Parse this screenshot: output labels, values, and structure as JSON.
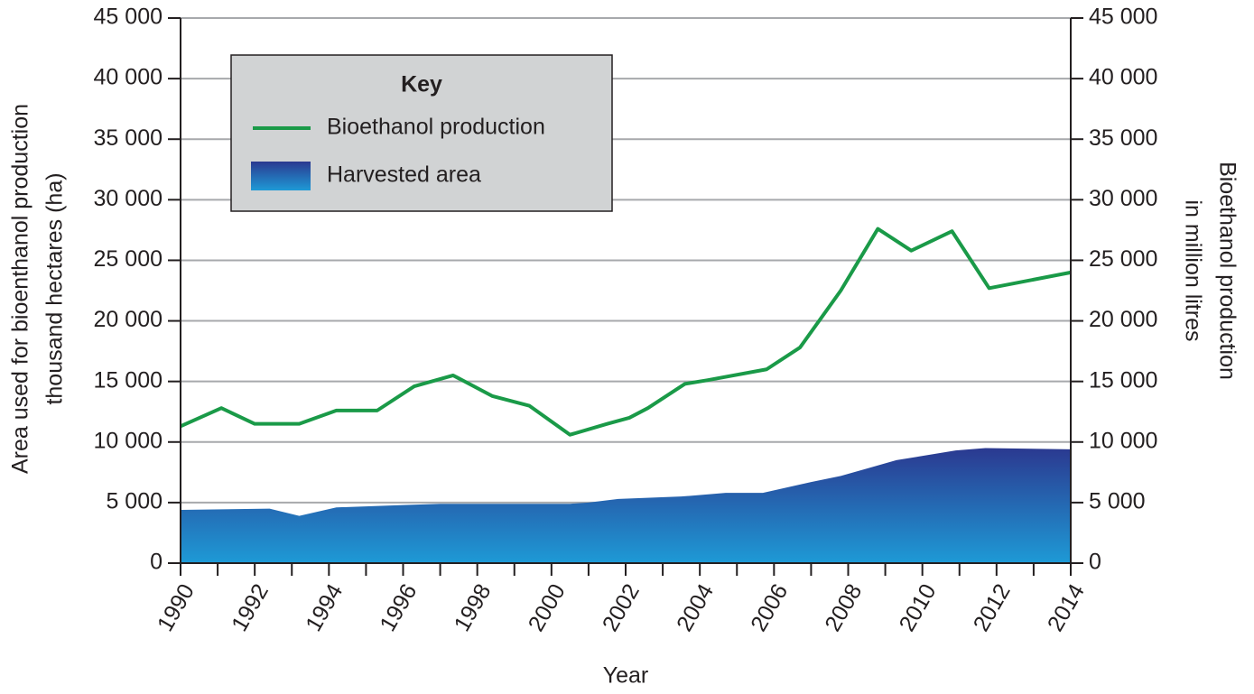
{
  "chart_data": {
    "type": "line-area",
    "x_label": "Year",
    "y_label": [
      "Area used for bioenthanol production",
      "thousand hectares (ha)"
    ],
    "y2_label": [
      "Bioethanol production",
      "in million litres"
    ],
    "legend_title": "Key",
    "legend": "upper left",
    "grid": true,
    "xlim": [
      1990,
      2014
    ],
    "xticks": [
      1990,
      1992,
      1994,
      1996,
      1998,
      2000,
      2002,
      2004,
      2006,
      2008,
      2010,
      2012,
      2014
    ],
    "xminorticks": [
      1991,
      1993,
      1995,
      1997,
      1999,
      2001,
      2003,
      2005,
      2007,
      2009,
      2011,
      2013
    ],
    "ylim": [
      0,
      45000
    ],
    "yticks": [
      0,
      {
        "value": 5000,
        "label": "5 000"
      },
      {
        "value": 10000,
        "label": "10 000"
      },
      {
        "value": 15000,
        "label": "15 000"
      },
      {
        "value": 20000,
        "label": "20 000"
      },
      {
        "value": 25000,
        "label": "25 000"
      },
      {
        "value": 30000,
        "label": "30 000"
      },
      {
        "value": 35000,
        "label": "35 000"
      },
      {
        "value": 40000,
        "label": "40 000"
      },
      {
        "value": 45000,
        "label": "45 000"
      }
    ],
    "y2lim": [
      0,
      45000
    ],
    "y2ticks": [
      0,
      {
        "value": 5000,
        "label": "5 000"
      },
      {
        "value": 10000,
        "label": "10 000"
      },
      {
        "value": 15000,
        "label": "15 000"
      },
      {
        "value": 20000,
        "label": "20 000"
      },
      {
        "value": 25000,
        "label": "25 000"
      },
      {
        "value": 30000,
        "label": "30 000"
      },
      {
        "value": 35000,
        "label": "35 000"
      },
      {
        "value": 40000,
        "label": "40 000"
      },
      {
        "value": 45000,
        "label": "45 000"
      }
    ],
    "series": [
      {
        "name": "Bioethanol production",
        "kind": "line",
        "axis": "y2",
        "color": "#1a9a48",
        "x": [
          1990,
          1991.1,
          1992,
          1993.2,
          1994.2,
          1995.3,
          1996.3,
          1997.35,
          1998.4,
          1999.4,
          2000.5,
          2001.5,
          2002.1,
          2002.6,
          2003.6,
          2004.2,
          2005.8,
          2006.7,
          2007.8,
          2008.8,
          2009.7,
          2010.8,
          2011.8,
          2014
        ],
        "values": [
          11300,
          12800,
          11500,
          11500,
          12600,
          12600,
          14600,
          15500,
          13800,
          13000,
          10600,
          11500,
          12000,
          12800,
          14800,
          15100,
          16000,
          17800,
          22500,
          27600,
          25800,
          27400,
          22700,
          24000
        ]
      },
      {
        "name": "Harvested area",
        "kind": "area",
        "axis": "y",
        "color": [
          "#2b3990",
          "#1e9ad6"
        ],
        "x": [
          1990,
          1992.4,
          1993.2,
          1994.2,
          1996,
          1997,
          2000.5,
          2001,
          2001.8,
          2003.5,
          2004.7,
          2005.7,
          2007,
          2007.8,
          2008.5,
          2009.3,
          2010.9,
          2011.7,
          2014
        ],
        "values": [
          4400,
          4500,
          3900,
          4600,
          4800,
          4900,
          4900,
          5000,
          5300,
          5500,
          5800,
          5800,
          6700,
          7200,
          7800,
          8500,
          9300,
          9500,
          9400
        ]
      }
    ]
  }
}
